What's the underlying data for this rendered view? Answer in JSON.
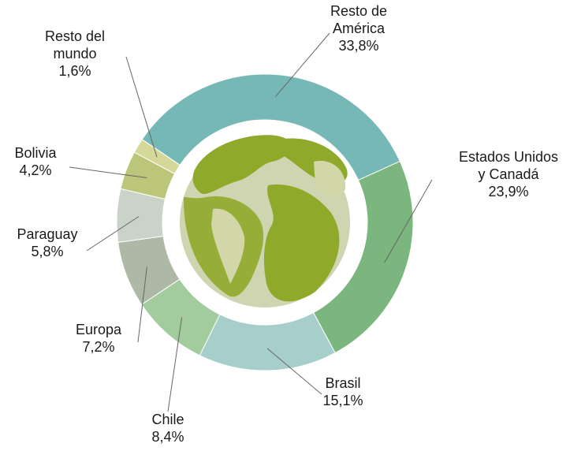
{
  "chart_data": {
    "type": "donut",
    "categories": [
      "Resto de\nAmérica",
      "Estados Unidos\ny Canadá",
      "Brasil",
      "Chile",
      "Europa",
      "Paraguay",
      "Bolivia",
      "Resto del\nmundo"
    ],
    "values": [
      33.8,
      23.9,
      15.1,
      8.4,
      7.2,
      5.8,
      4.2,
      1.6
    ],
    "value_labels": [
      "33,8%",
      "23,9%",
      "15,1%",
      "8,4%",
      "7,2%",
      "5,8%",
      "4,2%",
      "1,6%"
    ],
    "colors": [
      "#76b8b5",
      "#7ab67d",
      "#a6cfcc",
      "#a3cc9e",
      "#adb8a6",
      "#c9d3c8",
      "#bcc67b",
      "#d4d99a"
    ]
  }
}
